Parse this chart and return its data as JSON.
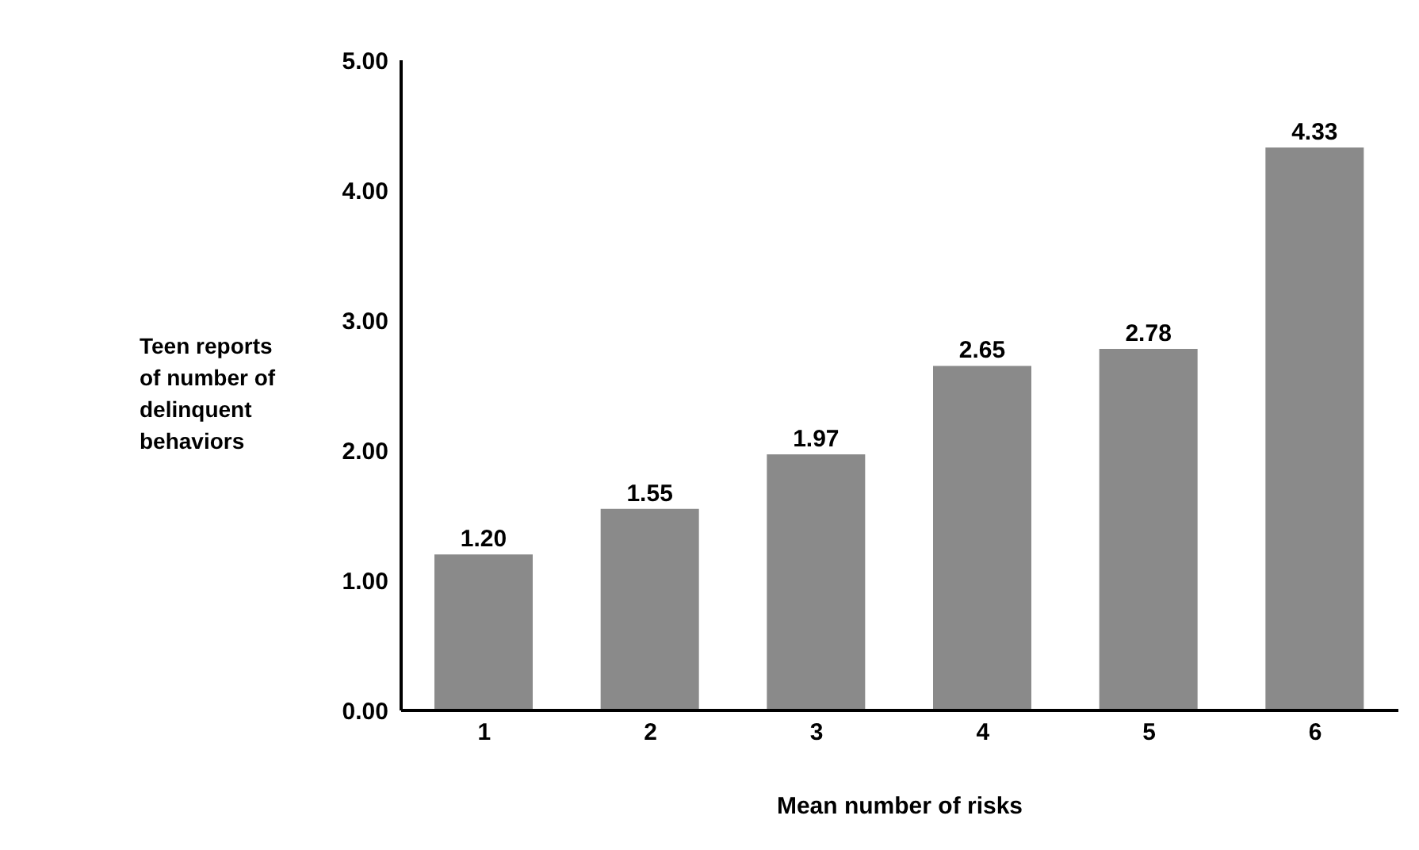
{
  "chart_data": {
    "type": "bar",
    "xlabel": "Mean number of risks",
    "ylabel": "Teen reports of number of delinquent behaviors",
    "categories": [
      "1",
      "2",
      "3",
      "4",
      "5",
      "6"
    ],
    "values": [
      1.2,
      1.55,
      1.97,
      2.65,
      2.78,
      4.33
    ],
    "color": "#8a8a8a",
    "value_labels": [
      "1.20",
      "1.55",
      "1.97",
      "2.65",
      "2.78",
      "4.33"
    ],
    "ylim": [
      0,
      5
    ],
    "yticks": [
      {
        "value": 0,
        "label": "0.00"
      },
      {
        "value": 1,
        "label": "1.00"
      },
      {
        "value": 2,
        "label": "2.00"
      },
      {
        "value": 3,
        "label": "3.00"
      },
      {
        "value": 4,
        "label": "4.00"
      },
      {
        "value": 5,
        "label": "5.00"
      }
    ],
    "grid": false
  }
}
